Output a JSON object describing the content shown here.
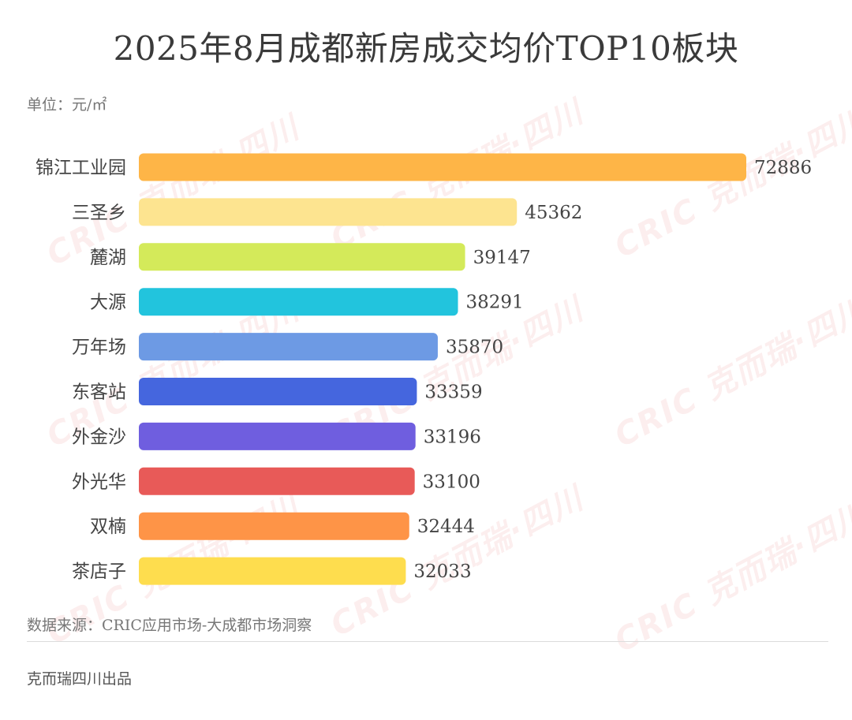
{
  "title": "2025年8月成都新房成交均价TOP10板块",
  "unit_label": "单位：元/㎡",
  "source_label": "数据来源：CRIC应用市场-大成都市场洞察",
  "credit_label": "克而瑞四川出品",
  "watermark_text": "CRIC 克而瑞·四川",
  "chart_data": {
    "type": "bar",
    "orientation": "horizontal",
    "title": "2025年8月成都新房成交均价TOP10板块",
    "xlabel": "",
    "ylabel": "",
    "unit": "元/㎡",
    "grid": false,
    "legend": "none",
    "xlim": [
      0,
      72886
    ],
    "categories": [
      "锦江工业园",
      "三圣乡",
      "麓湖",
      "大源",
      "万年场",
      "东客站",
      "外金沙",
      "外光华",
      "双楠",
      "茶店子"
    ],
    "values": [
      72886,
      45362,
      39147,
      38291,
      35870,
      33359,
      33196,
      33100,
      32444,
      32033
    ],
    "colors": [
      "#FEB547",
      "#FDE490",
      "#D4EA5A",
      "#22C4DD",
      "#6D9AE4",
      "#4566DE",
      "#6F5EDF",
      "#E85A58",
      "#FE9447",
      "#FEDD4E"
    ]
  }
}
